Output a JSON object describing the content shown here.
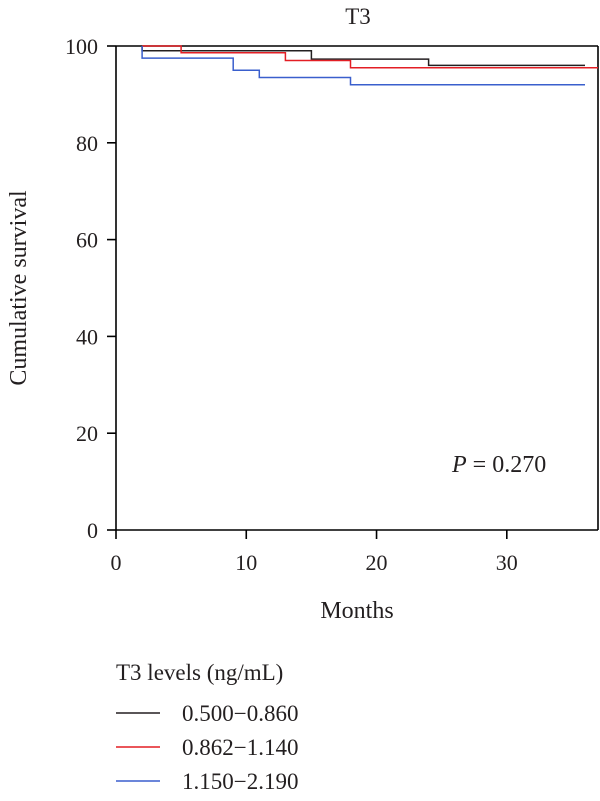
{
  "chart_data": {
    "type": "line",
    "title": "T3",
    "xlabel": "Months",
    "ylabel": "Cumulative survival",
    "xlim": [
      0,
      37
    ],
    "ylim": [
      0,
      100
    ],
    "xticks": [
      0,
      10,
      20,
      30
    ],
    "yticks": [
      0,
      20,
      40,
      60,
      80,
      100
    ],
    "grid": false,
    "annotation": {
      "italic": "P",
      "text": " = 0.270"
    },
    "legend": {
      "title": "T3 levels (ng/mL)",
      "placement": "bottom-left, below plot"
    },
    "series": [
      {
        "name": "0.500−0.860",
        "color": "#231f20",
        "x": [
          2,
          2,
          15,
          15,
          24,
          24,
          36
        ],
        "y": [
          100,
          99,
          99,
          97.3,
          97.3,
          96,
          96
        ]
      },
      {
        "name": "0.862−1.140",
        "color": "#e31e24",
        "x": [
          2,
          5,
          5,
          13,
          13,
          18,
          18,
          37
        ],
        "y": [
          100,
          100,
          98.6,
          98.6,
          97,
          97,
          95.5,
          95.5
        ]
      },
      {
        "name": "1.150−2.190",
        "color": "#3a5fcd",
        "x": [
          2,
          2,
          9,
          9,
          11,
          11,
          18,
          18,
          36
        ],
        "y": [
          100,
          97.5,
          97.5,
          95,
          95,
          93.5,
          93.5,
          92,
          92
        ]
      }
    ]
  }
}
